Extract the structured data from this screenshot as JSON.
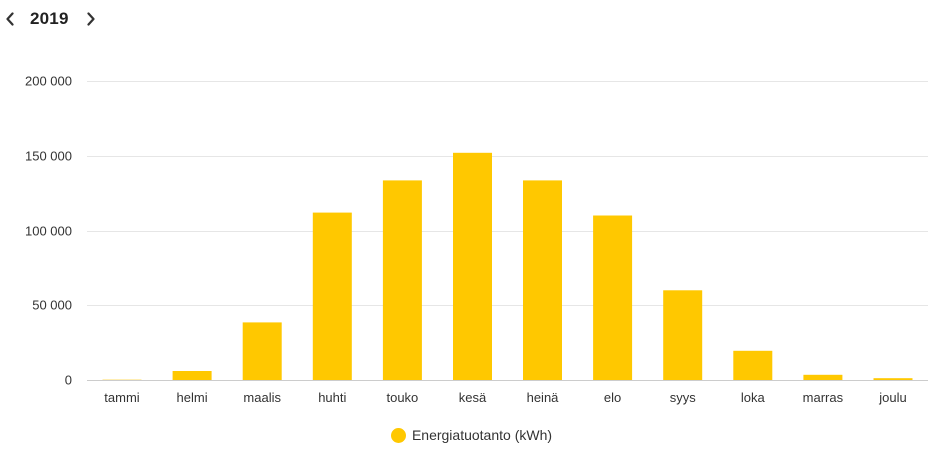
{
  "header": {
    "prev_icon": "chevron-left-icon",
    "next_icon": "chevron-right-icon",
    "year": "2019"
  },
  "colors": {
    "bar": "#FFC800",
    "grid": "#E6E6E6",
    "text": "#333333"
  },
  "chart_data": {
    "type": "bar",
    "title": "",
    "xlabel": "",
    "ylabel": "",
    "ylim": [
      0,
      200000
    ],
    "y_ticks": [
      0,
      50000,
      100000,
      150000,
      200000
    ],
    "y_tick_labels": [
      "0",
      "50 000",
      "100 000",
      "150 000",
      "200 000"
    ],
    "grid": true,
    "legend_position": "bottom-center",
    "categories": [
      "tammi",
      "helmi",
      "maalis",
      "huhti",
      "touko",
      "kesä",
      "heinä",
      "elo",
      "syys",
      "loka",
      "marras",
      "joulu"
    ],
    "series": [
      {
        "name": "Energiatuotanto (kWh)",
        "color": "#FFC800",
        "values": [
          200,
          6000,
          38500,
          112000,
          133500,
          152000,
          133500,
          110000,
          60000,
          19500,
          3500,
          1200
        ]
      }
    ]
  }
}
